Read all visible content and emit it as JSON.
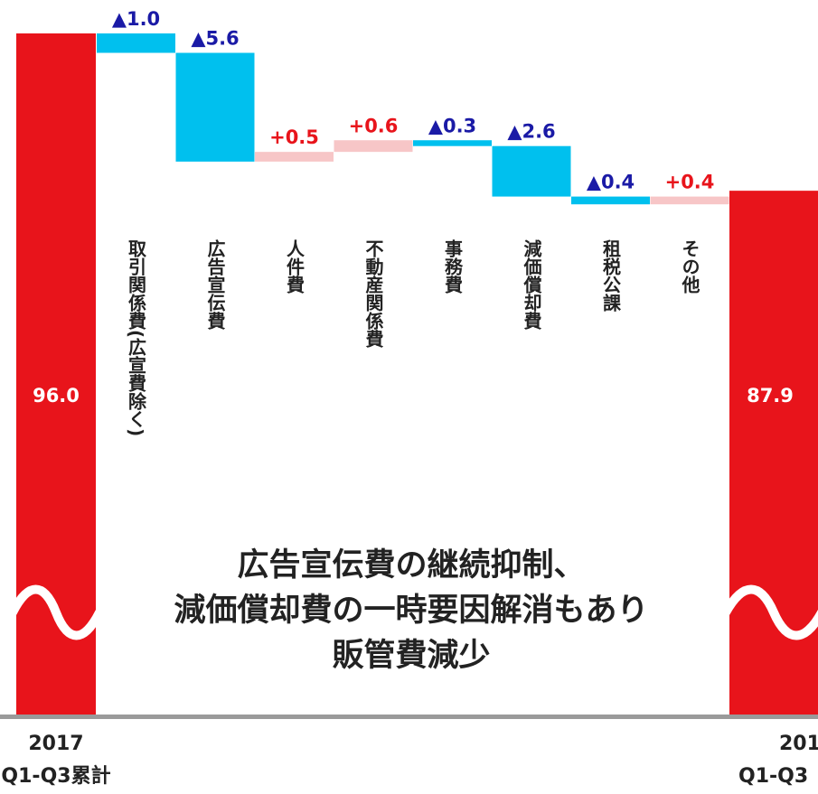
{
  "chart_data": {
    "type": "waterfall",
    "start": {
      "label_line1": "2017",
      "label_line2": "Q1-Q3累計",
      "value": 96.0,
      "value_label": "96.0"
    },
    "end": {
      "label_line1": "201",
      "label_line2": "Q1-Q3",
      "value": 87.9,
      "value_label": "87.9"
    },
    "steps": [
      {
        "category": "取引関係費(広宣費除く)",
        "delta": -1.0,
        "label": "▲1.0"
      },
      {
        "category": "広告宣伝費",
        "delta": -5.6,
        "label": "▲5.6"
      },
      {
        "category": "人件費",
        "delta": 0.5,
        "label": "+0.5"
      },
      {
        "category": "不動産関係費",
        "delta": 0.6,
        "label": "+0.6"
      },
      {
        "category": "事務費",
        "delta": -0.3,
        "label": "▲0.3"
      },
      {
        "category": "減価償却費",
        "delta": -2.6,
        "label": "▲2.6"
      },
      {
        "category": "租税公課",
        "delta": -0.4,
        "label": "▲0.4"
      },
      {
        "category": "その他",
        "delta": 0.4,
        "label": "+0.4"
      }
    ],
    "annotation": [
      "広告宣伝費の継続抑制、",
      "減価償却費の一時要因解消もあり",
      "販管費減少"
    ],
    "axis_break": true,
    "colors": {
      "total": "#e8141b",
      "decrease": "#00c0ee",
      "increase": "#f7c6c7",
      "decrease_label": "#1a1aa6",
      "increase_label": "#e8141b",
      "total_label": "#ffffff",
      "text": "#222222",
      "baseline": "#9a9a9a"
    }
  }
}
